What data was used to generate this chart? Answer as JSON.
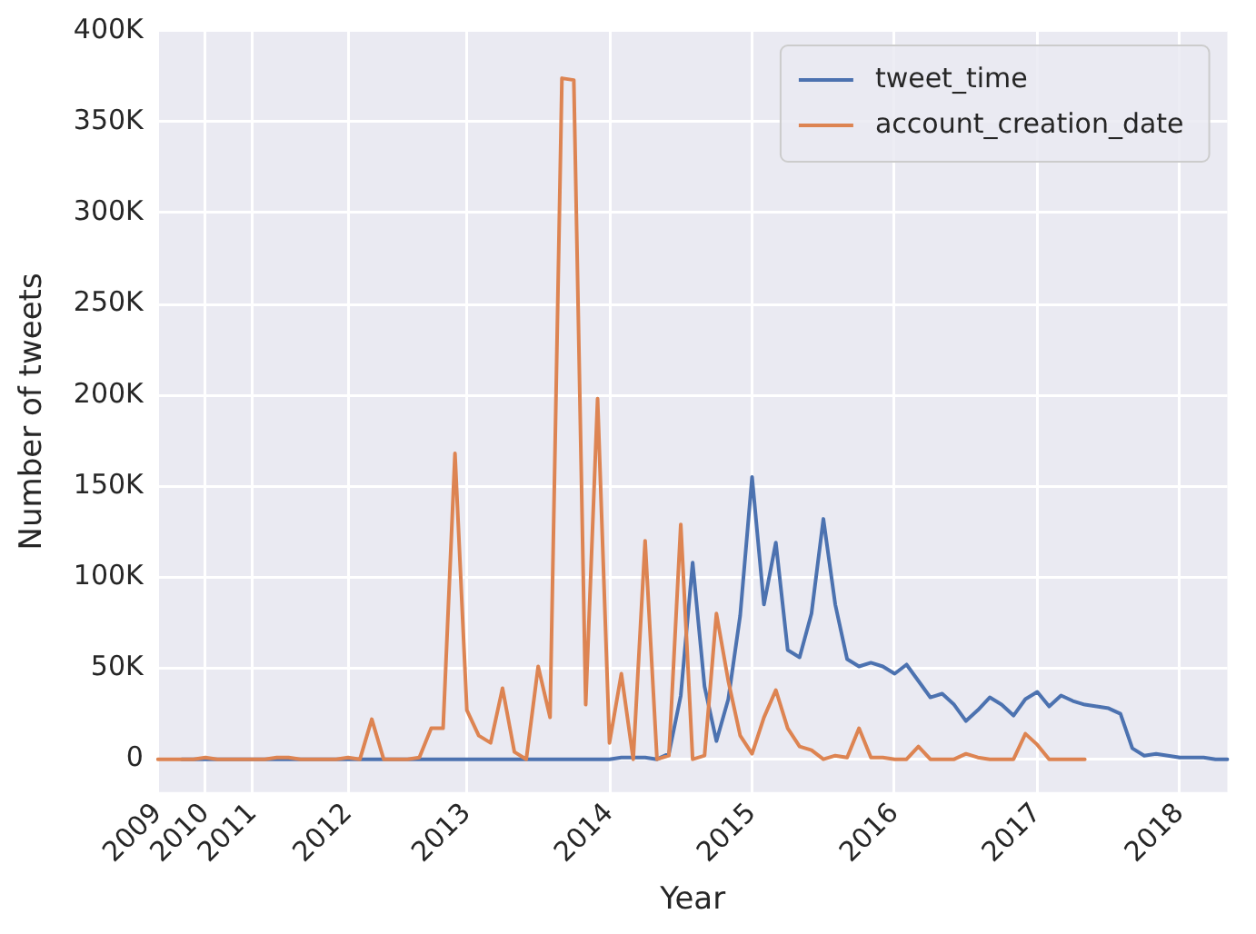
{
  "chart_data": {
    "type": "line",
    "xlabel": "Year",
    "ylabel": "Number of tweets",
    "categories": [
      "2009",
      null,
      null,
      null,
      "2010",
      null,
      null,
      null,
      "2011",
      null,
      null,
      null,
      null,
      null,
      null,
      null,
      "2012",
      null,
      null,
      null,
      null,
      null,
      null,
      null,
      null,
      null,
      "2013",
      null,
      null,
      null,
      null,
      null,
      null,
      null,
      null,
      null,
      null,
      null,
      "2014",
      null,
      null,
      null,
      null,
      null,
      null,
      null,
      null,
      null,
      null,
      null,
      "2015",
      null,
      null,
      null,
      null,
      null,
      null,
      null,
      null,
      null,
      null,
      null,
      "2016",
      null,
      null,
      null,
      null,
      null,
      null,
      null,
      null,
      null,
      null,
      null,
      "2017",
      null,
      null,
      null,
      null,
      null,
      null,
      null,
      null,
      null,
      null,
      null,
      "2018",
      null,
      null,
      null,
      null
    ],
    "series": [
      {
        "name": "tweet_time",
        "color": "#4c72b0",
        "values": [
          null,
          null,
          0,
          0,
          0,
          0,
          0,
          0,
          0,
          0,
          0,
          0,
          0,
          0,
          0,
          0,
          0,
          0,
          0,
          0,
          0,
          0,
          0,
          0,
          0,
          0,
          0,
          0,
          0,
          0,
          0,
          0,
          0,
          0,
          0,
          0,
          0,
          0,
          0,
          1000,
          1000,
          1000,
          0,
          3000,
          35000,
          108000,
          40000,
          10000,
          33000,
          79000,
          155000,
          85000,
          119000,
          60000,
          56000,
          80000,
          132000,
          85000,
          55000,
          51000,
          53000,
          51000,
          47000,
          52000,
          43000,
          34000,
          36000,
          30000,
          21000,
          27000,
          34000,
          30000,
          24000,
          33000,
          37000,
          29000,
          35000,
          32000,
          30000,
          29000,
          28000,
          25000,
          6000,
          2000,
          3000,
          2000,
          1000,
          1000,
          1000,
          0,
          0
        ]
      },
      {
        "name": "account_creation_date",
        "color": "#dd8452",
        "values": [
          0,
          0,
          0,
          0,
          1000,
          0,
          0,
          0,
          0,
          0,
          1000,
          1000,
          0,
          0,
          0,
          0,
          1000,
          0,
          22000,
          0,
          0,
          0,
          1000,
          17000,
          17000,
          168000,
          27000,
          13000,
          9000,
          39000,
          4000,
          0,
          51000,
          23000,
          374000,
          373000,
          30000,
          198000,
          9000,
          47000,
          0,
          120000,
          0,
          2000,
          129000,
          0,
          2000,
          80000,
          43000,
          13000,
          3000,
          23000,
          38000,
          17000,
          7000,
          5000,
          0,
          2000,
          1000,
          17000,
          1000,
          1000,
          0,
          0,
          7000,
          0,
          0,
          0,
          3000,
          1000,
          0,
          0,
          0,
          14000,
          8000,
          0,
          0,
          0,
          0,
          null,
          null,
          null,
          null,
          null,
          null,
          null,
          null,
          null,
          null,
          null,
          null
        ]
      }
    ],
    "ylim": [
      -18000,
      400000
    ],
    "yticks": [
      0,
      {
        "value": 50000,
        "label": "50K"
      },
      {
        "value": 100000,
        "label": "100K"
      },
      {
        "value": 150000,
        "label": "150K"
      },
      {
        "value": 200000,
        "label": "200K"
      },
      {
        "value": 250000,
        "label": "250K"
      },
      {
        "value": 300000,
        "label": "300K"
      },
      {
        "value": 350000,
        "label": "350K"
      },
      {
        "value": 400000,
        "label": "400K"
      }
    ],
    "grid": true,
    "legend": "top right",
    "marker": "none",
    "line_style": "solid"
  }
}
